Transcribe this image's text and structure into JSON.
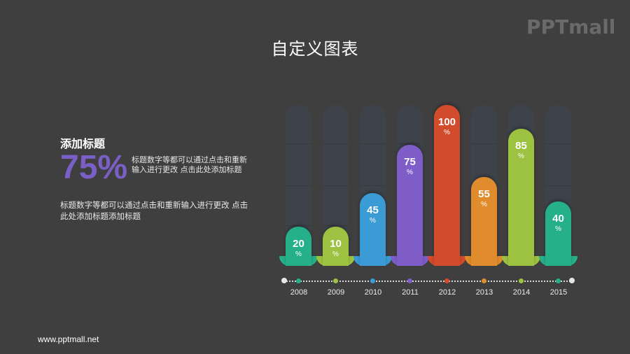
{
  "header": {
    "title": "自定义图表",
    "logo": "PPTmall"
  },
  "left_panel": {
    "subtitle": "添加标题",
    "big_value": "75%",
    "side_text": "标题数字等都可以通过点击和重新输入进行更改  点击此处添加标题",
    "body_text": "标题数字等都可以通过点击和重新输入进行更改 点击此处添加标题添加标题"
  },
  "footer": {
    "url": "www.pptmall.net"
  },
  "colors": {
    "background": "#3f3f3f",
    "track": "#3e434b",
    "accent_purple": "#7a5fc6"
  },
  "chart_data": {
    "type": "bar",
    "title": "自定义图表",
    "categories": [
      "2008",
      "2009",
      "2010",
      "2011",
      "2012",
      "2013",
      "2014",
      "2015"
    ],
    "values": [
      20,
      10,
      45,
      75,
      100,
      55,
      85,
      40
    ],
    "unit": "%",
    "colors": [
      "#25b08a",
      "#9dc141",
      "#3a9bd5",
      "#7e5dc8",
      "#d24b2c",
      "#e08c2c",
      "#9dc141",
      "#25b08a"
    ],
    "ylim": [
      0,
      100
    ],
    "xlabel": "",
    "ylabel": "",
    "grid": false,
    "legend": "none"
  },
  "bars": [
    {
      "value": "20",
      "unit": "%",
      "year": "2008"
    },
    {
      "value": "10",
      "unit": "%",
      "year": "2009"
    },
    {
      "value": "45",
      "unit": "%",
      "year": "2010"
    },
    {
      "value": "75",
      "unit": "%",
      "year": "2011"
    },
    {
      "value": "100",
      "unit": "%",
      "year": "2012"
    },
    {
      "value": "55",
      "unit": "%",
      "year": "2013"
    },
    {
      "value": "85",
      "unit": "%",
      "year": "2014"
    },
    {
      "value": "40",
      "unit": "%",
      "year": "2015"
    }
  ]
}
